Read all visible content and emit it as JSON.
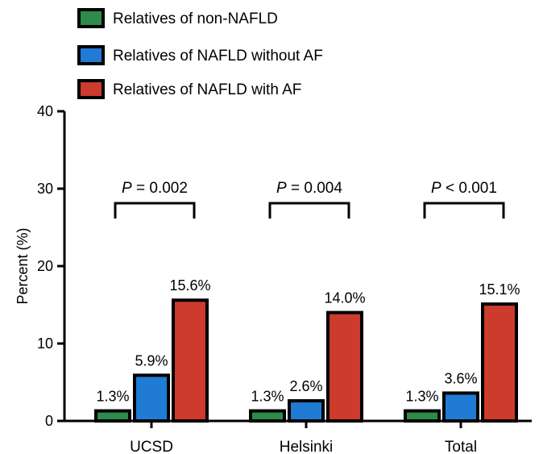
{
  "chart_data": {
    "type": "bar",
    "categories": [
      "UCSD",
      "Helsinki",
      "Total"
    ],
    "series": [
      {
        "name": "Relatives of non-NAFLD",
        "color": "#2e8b4a",
        "values": [
          1.3,
          1.3,
          1.3
        ],
        "labels": [
          "1.3%",
          "1.3%",
          "1.3%"
        ]
      },
      {
        "name": "Relatives of NAFLD without AF",
        "color": "#1f7bd4",
        "values": [
          5.9,
          2.6,
          3.6
        ],
        "labels": [
          "5.9%",
          "2.6%",
          "3.6%"
        ]
      },
      {
        "name": "Relatives of NAFLD with AF",
        "color": "#cc3b2c",
        "values": [
          15.6,
          14.0,
          15.1
        ],
        "labels": [
          "15.6%",
          "14.0%",
          "15.1%"
        ]
      }
    ],
    "ylabel": "Percent (%)",
    "ylim": [
      0,
      40
    ],
    "yticks": [
      0,
      10,
      20,
      30,
      40
    ],
    "annotations": [
      {
        "category": "UCSD",
        "p_symbol": "P",
        "p_text": " = 0.002"
      },
      {
        "category": "Helsinki",
        "p_symbol": "P",
        "p_text": " = 0.004"
      },
      {
        "category": "Total",
        "p_symbol": "P",
        "p_text": " < 0.001"
      }
    ],
    "legend_position": "top-left",
    "grid": false
  }
}
